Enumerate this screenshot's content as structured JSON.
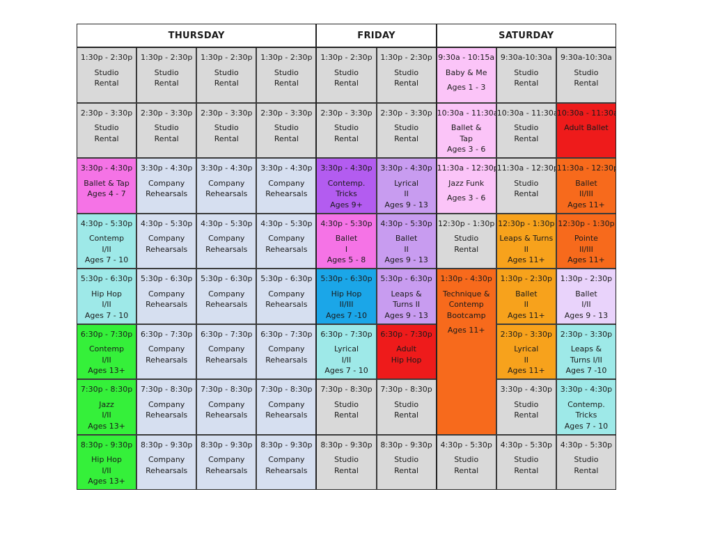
{
  "days": [
    {
      "name": "THURSDAY",
      "colStart": 0,
      "colSpan": 4
    },
    {
      "name": "FRIDAY",
      "colStart": 4,
      "colSpan": 2
    },
    {
      "name": "SATURDAY",
      "colStart": 6,
      "colSpan": 3
    }
  ],
  "colors": {
    "gray": "#d9d9d9",
    "pink": "#f573e6",
    "lightblue": "#d6dff0",
    "aqua": "#9ee9e8",
    "green": "#35f03a",
    "purple": "#b35cf0",
    "lavender": "#c89cf0",
    "lightpink": "#fbc4f8",
    "red": "#ee1b1b",
    "orange": "#f76a1c",
    "amber": "#f7a21c",
    "lilac": "#e9d3fb",
    "blue": "#1ba6e8"
  },
  "cells": [
    {
      "col": 0,
      "row": 0,
      "color": "gray",
      "lines": [
        "1:30p - 2:30p",
        "Studio",
        "Rental"
      ]
    },
    {
      "col": 1,
      "row": 0,
      "color": "gray",
      "lines": [
        "1:30p - 2:30p",
        "Studio",
        "Rental"
      ]
    },
    {
      "col": 2,
      "row": 0,
      "color": "gray",
      "lines": [
        "1:30p - 2:30p",
        "Studio",
        "Rental"
      ]
    },
    {
      "col": 3,
      "row": 0,
      "color": "gray",
      "lines": [
        "1:30p - 2:30p",
        "Studio",
        "Rental"
      ]
    },
    {
      "col": 4,
      "row": 0,
      "color": "gray",
      "lines": [
        "1:30p - 2:30p",
        "Studio",
        "Rental"
      ]
    },
    {
      "col": 5,
      "row": 0,
      "color": "gray",
      "lines": [
        "1:30p - 2:30p",
        "Studio",
        "Rental"
      ]
    },
    {
      "col": 6,
      "row": 0,
      "color": "lightpink",
      "lines": [
        "9:30a - 10:15a",
        "Baby & Me",
        "",
        "Ages 1 - 3"
      ]
    },
    {
      "col": 7,
      "row": 0,
      "color": "gray",
      "lines": [
        "9:30a-10:30a",
        "Studio",
        "Rental"
      ]
    },
    {
      "col": 8,
      "row": 0,
      "color": "gray",
      "lines": [
        "9:30a-10:30a",
        "Studio",
        "Rental"
      ]
    },
    {
      "col": 0,
      "row": 1,
      "color": "gray",
      "lines": [
        "2:30p - 3:30p",
        "Studio",
        "Rental"
      ]
    },
    {
      "col": 1,
      "row": 1,
      "color": "gray",
      "lines": [
        "2:30p - 3:30p",
        "Studio",
        "Rental"
      ]
    },
    {
      "col": 2,
      "row": 1,
      "color": "gray",
      "lines": [
        "2:30p - 3:30p",
        "Studio",
        "Rental"
      ]
    },
    {
      "col": 3,
      "row": 1,
      "color": "gray",
      "lines": [
        "2:30p - 3:30p",
        "Studio",
        "Rental"
      ]
    },
    {
      "col": 4,
      "row": 1,
      "color": "gray",
      "lines": [
        "2:30p - 3:30p",
        "Studio",
        "Rental"
      ]
    },
    {
      "col": 5,
      "row": 1,
      "color": "gray",
      "lines": [
        "2:30p - 3:30p",
        "Studio",
        "Rental"
      ]
    },
    {
      "col": 6,
      "row": 1,
      "color": "lightpink",
      "lines": [
        "10:30a - 11:30a",
        "Ballet &",
        "Tap",
        "Ages 3 - 6"
      ]
    },
    {
      "col": 7,
      "row": 1,
      "color": "gray",
      "lines": [
        "10:30a - 11:30a",
        "Studio",
        "Rental"
      ]
    },
    {
      "col": 8,
      "row": 1,
      "color": "red",
      "lines": [
        "10:30a - 11:30a",
        "",
        "Adult Ballet"
      ]
    },
    {
      "col": 0,
      "row": 2,
      "color": "pink",
      "lines": [
        "3:30p - 4:30p",
        "Ballet & Tap",
        "Ages 4 - 7"
      ]
    },
    {
      "col": 1,
      "row": 2,
      "color": "lightblue",
      "lines": [
        "3:30p - 4:30p",
        "Company",
        "Rehearsals"
      ]
    },
    {
      "col": 2,
      "row": 2,
      "color": "lightblue",
      "lines": [
        "3:30p - 4:30p",
        "Company",
        "Rehearsals"
      ]
    },
    {
      "col": 3,
      "row": 2,
      "color": "lightblue",
      "lines": [
        "3:30p - 4:30p",
        "Company",
        "Rehearsals"
      ]
    },
    {
      "col": 4,
      "row": 2,
      "color": "purple",
      "lines": [
        "3:30p - 4:30p",
        "Contemp.",
        "Tricks",
        "Ages 9+"
      ]
    },
    {
      "col": 5,
      "row": 2,
      "color": "lavender",
      "lines": [
        "3:30p - 4:30p",
        "Lyrical",
        "II",
        "Ages 9 - 13"
      ]
    },
    {
      "col": 6,
      "row": 2,
      "color": "lightpink",
      "lines": [
        "11:30a - 12:30p",
        "Jazz Funk",
        "",
        "Ages 3 - 6"
      ]
    },
    {
      "col": 7,
      "row": 2,
      "color": "gray",
      "lines": [
        "11:30a - 12:30p",
        "Studio",
        "Rental"
      ]
    },
    {
      "col": 8,
      "row": 2,
      "color": "orange",
      "lines": [
        "11:30a - 12:30p",
        "Ballet",
        "II/III",
        "Ages 11+"
      ]
    },
    {
      "col": 0,
      "row": 3,
      "color": "aqua",
      "lines": [
        "4:30p - 5:30p",
        "Contemp",
        "I/II",
        "Ages 7 - 10"
      ]
    },
    {
      "col": 1,
      "row": 3,
      "color": "lightblue",
      "lines": [
        "4:30p - 5:30p",
        "Company",
        "Rehearsals"
      ]
    },
    {
      "col": 2,
      "row": 3,
      "color": "lightblue",
      "lines": [
        "4:30p - 5:30p",
        "Company",
        "Rehearsals"
      ]
    },
    {
      "col": 3,
      "row": 3,
      "color": "lightblue",
      "lines": [
        "4:30p - 5:30p",
        "Company",
        "Rehearsals"
      ]
    },
    {
      "col": 4,
      "row": 3,
      "color": "pink",
      "lines": [
        "4:30p - 5:30p",
        "Ballet",
        "I",
        "Ages 5 - 8"
      ]
    },
    {
      "col": 5,
      "row": 3,
      "color": "lavender",
      "lines": [
        "4:30p - 5:30p",
        "Ballet",
        "II",
        "Ages 9 - 13"
      ]
    },
    {
      "col": 6,
      "row": 3,
      "color": "gray",
      "lines": [
        "12:30p - 1:30p",
        "Studio",
        "Rental"
      ]
    },
    {
      "col": 7,
      "row": 3,
      "color": "amber",
      "lines": [
        "12:30p - 1:30p",
        "Leaps & Turns",
        "II",
        "Ages 11+"
      ]
    },
    {
      "col": 8,
      "row": 3,
      "color": "orange",
      "lines": [
        "12:30p - 1:30p",
        "Pointe",
        "II/III",
        "Ages 11+"
      ]
    },
    {
      "col": 0,
      "row": 4,
      "color": "aqua",
      "lines": [
        "5:30p - 6:30p",
        "Hip Hop",
        "I/II",
        "Ages 7 - 10"
      ]
    },
    {
      "col": 1,
      "row": 4,
      "color": "lightblue",
      "lines": [
        "5:30p - 6:30p",
        "Company",
        "Rehearsals"
      ]
    },
    {
      "col": 2,
      "row": 4,
      "color": "lightblue",
      "lines": [
        "5:30p - 6:30p",
        "Company",
        "Rehearsals"
      ]
    },
    {
      "col": 3,
      "row": 4,
      "color": "lightblue",
      "lines": [
        "5:30p - 6:30p",
        "Company",
        "Rehearsals"
      ]
    },
    {
      "col": 4,
      "row": 4,
      "color": "blue",
      "lines": [
        "5:30p - 6:30p",
        "Hip Hop",
        "II/III",
        "Ages 7 -10"
      ]
    },
    {
      "col": 5,
      "row": 4,
      "color": "lavender",
      "lines": [
        "5:30p - 6:30p",
        "Leaps &",
        "Turns II",
        "Ages 9 - 13"
      ]
    },
    {
      "col": 6,
      "row": 4,
      "rowSpan": 3,
      "color": "orange",
      "lines": [
        "1:30p - 4:30p",
        "",
        "Technique &",
        "Contemp",
        "Bootcamp",
        "",
        "",
        "Ages 11+"
      ]
    },
    {
      "col": 7,
      "row": 4,
      "color": "amber",
      "lines": [
        "1:30p - 2:30p",
        "Ballet",
        "II",
        "Ages 11+"
      ]
    },
    {
      "col": 8,
      "row": 4,
      "color": "lilac",
      "lines": [
        "1:30p - 2:30p",
        "Ballet",
        "I/II",
        "Ages 9 - 13"
      ]
    },
    {
      "col": 0,
      "row": 5,
      "color": "green",
      "lines": [
        "6:30p - 7:30p",
        "Contemp",
        "I/II",
        "Ages 13+"
      ]
    },
    {
      "col": 1,
      "row": 5,
      "color": "lightblue",
      "lines": [
        "6:30p - 7:30p",
        "Company",
        "Rehearsals"
      ]
    },
    {
      "col": 2,
      "row": 5,
      "color": "lightblue",
      "lines": [
        "6:30p - 7:30p",
        "Company",
        "Rehearsals"
      ]
    },
    {
      "col": 3,
      "row": 5,
      "color": "lightblue",
      "lines": [
        "6:30p - 7:30p",
        "Company",
        "Rehearsals"
      ]
    },
    {
      "col": 4,
      "row": 5,
      "color": "aqua",
      "lines": [
        "6:30p - 7:30p",
        "Lyrical",
        "I/II",
        "Ages 7 - 10"
      ]
    },
    {
      "col": 5,
      "row": 5,
      "color": "red",
      "lines": [
        "6:30p - 7:30p",
        "Adult",
        "Hip Hop"
      ]
    },
    {
      "col": 7,
      "row": 5,
      "color": "amber",
      "lines": [
        "2:30p - 3:30p",
        "Lyrical",
        "II",
        "Ages 11+"
      ]
    },
    {
      "col": 8,
      "row": 5,
      "color": "aqua",
      "lines": [
        "2:30p - 3:30p",
        "Leaps &",
        "Turns I/II",
        "Ages 7 -10"
      ]
    },
    {
      "col": 0,
      "row": 6,
      "color": "green",
      "lines": [
        "7:30p - 8:30p",
        "Jazz",
        "I/II",
        "Ages 13+"
      ]
    },
    {
      "col": 1,
      "row": 6,
      "color": "lightblue",
      "lines": [
        "7:30p - 8:30p",
        "Company",
        "Rehearsals"
      ]
    },
    {
      "col": 2,
      "row": 6,
      "color": "lightblue",
      "lines": [
        "7:30p - 8:30p",
        "Company",
        "Rehearsals"
      ]
    },
    {
      "col": 3,
      "row": 6,
      "color": "lightblue",
      "lines": [
        "7:30p - 8:30p",
        "Company",
        "Rehearsals"
      ]
    },
    {
      "col": 4,
      "row": 6,
      "color": "gray",
      "lines": [
        "7:30p - 8:30p",
        "Studio",
        "Rental"
      ]
    },
    {
      "col": 5,
      "row": 6,
      "color": "gray",
      "lines": [
        "7:30p - 8:30p",
        "Studio",
        "Rental"
      ]
    },
    {
      "col": 7,
      "row": 6,
      "color": "gray",
      "lines": [
        "3:30p - 4:30p",
        "Studio",
        "Rental"
      ]
    },
    {
      "col": 8,
      "row": 6,
      "color": "aqua",
      "lines": [
        "3:30p - 4:30p",
        "Contemp.",
        "Tricks",
        "Ages 7 - 10"
      ]
    },
    {
      "col": 0,
      "row": 7,
      "color": "green",
      "lines": [
        "8:30p - 9:30p",
        "Hip Hop",
        "I/II",
        "Ages 13+"
      ]
    },
    {
      "col": 1,
      "row": 7,
      "color": "lightblue",
      "lines": [
        "8:30p - 9:30p",
        "Company",
        "Rehearsals"
      ]
    },
    {
      "col": 2,
      "row": 7,
      "color": "lightblue",
      "lines": [
        "8:30p - 9:30p",
        "Company",
        "Rehearsals"
      ]
    },
    {
      "col": 3,
      "row": 7,
      "color": "lightblue",
      "lines": [
        "8:30p - 9:30p",
        "Company",
        "Rehearsals"
      ]
    },
    {
      "col": 4,
      "row": 7,
      "color": "gray",
      "lines": [
        "8:30p - 9:30p",
        "Studio",
        "Rental"
      ]
    },
    {
      "col": 5,
      "row": 7,
      "color": "gray",
      "lines": [
        "8:30p - 9:30p",
        "Studio",
        "Rental"
      ]
    },
    {
      "col": 6,
      "row": 7,
      "color": "gray",
      "lines": [
        "4:30p - 5:30p",
        "Studio",
        "Rental"
      ]
    },
    {
      "col": 7,
      "row": 7,
      "color": "gray",
      "lines": [
        "4:30p - 5:30p",
        "Studio",
        "Rental"
      ]
    },
    {
      "col": 8,
      "row": 7,
      "color": "gray",
      "lines": [
        "4:30p - 5:30p",
        "Studio",
        "Rental"
      ]
    }
  ]
}
